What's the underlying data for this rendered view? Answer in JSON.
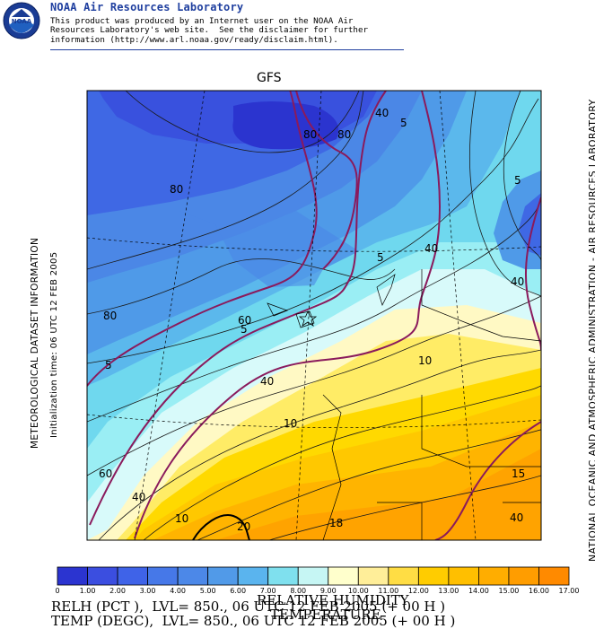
{
  "header": {
    "title": "NOAA Air Resources Laboratory",
    "logo_text": "NOAA",
    "disclaimer_line1": "This product was produced by an Internet user on the NOAA Air",
    "disclaimer_line2": "Resources Laboratory's web site.  See the disclaimer for further",
    "disclaimer_line3": "information (http://www.arl.noaa.gov/ready/disclaim.html)."
  },
  "map": {
    "title": "GFS",
    "side_left_1": "METEOROLOGICAL DATASET INFORMATION",
    "side_left_2": "Initialization time: 06 UTC 12 FEB 2005",
    "side_right": "NATIONAL OCEANIC AND ATMOSPHERIC ADMINISTRATION - AIR RESOURCES LABORATORY",
    "contour_labels_rh": [
      "80",
      "80",
      "80",
      "80",
      "60",
      "40",
      "40",
      "40",
      "40",
      "40",
      "60",
      "40"
    ],
    "contour_labels_temp": [
      "5",
      "5",
      "5",
      "5",
      "5",
      "10",
      "10",
      "10",
      "15",
      "18",
      "20"
    ]
  },
  "colorbar": {
    "title_line1": "RELATIVE HUMIDITY",
    "title_line2": "TEMPERATURE",
    "labels": [
      "0",
      "1.00",
      "2.00",
      "3.00",
      "4.00",
      "5.00",
      "6.00",
      "7.00",
      "8.00",
      "9.00",
      "10.00",
      "11.00",
      "12.00",
      "13.00",
      "14.00",
      "15.00",
      "16.00",
      "17.00"
    ],
    "colors": [
      "#2b34d0",
      "#3b4ee0",
      "#3f63e8",
      "#4678e8",
      "#4c88e8",
      "#519ae8",
      "#5ab4ee",
      "#7fe0ee",
      "#c6f6f4",
      "#ffffcc",
      "#ffee99",
      "#ffdd44",
      "#ffcc00",
      "#ffbf00",
      "#ffad00",
      "#ff9d00",
      "#ff8a00"
    ]
  },
  "footer": {
    "line1": "RELH (PCT ),  LVL= 850., 06 UTC 12 FEB 2005 (+ 00 H )",
    "line2": "TEMP (DEGC),  LVL= 850., 06 UTC 12 FEB 2005 (+ 00 H )"
  }
}
